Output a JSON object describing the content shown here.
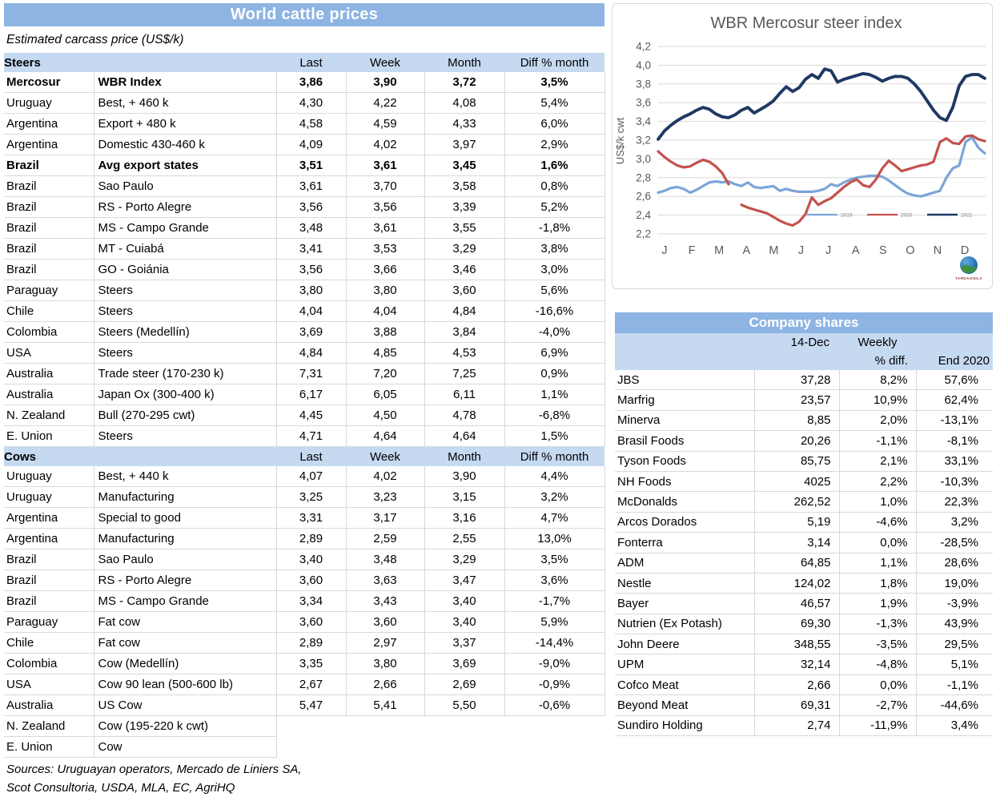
{
  "colors": {
    "title_bar_blue": "#8DB4E2",
    "band_blue": "#C5D9F1",
    "grid_gray": "#D9D9D9",
    "axis_text_gray": "#595959",
    "series_2019": "#7CA5D8",
    "series_2020": "#C3524E",
    "series_2021": "#1F3864"
  },
  "left_panel": {
    "title": "World cattle prices",
    "subtitle": "Estimated carcass price (US$/k)",
    "column_headers": [
      "Last",
      "Week",
      "Month",
      "Diff % month"
    ],
    "sections": [
      {
        "name": "Steers",
        "rows": [
          [
            "Mercosur",
            "WBR Index",
            "3,86",
            "3,90",
            "3,72",
            "3,5%",
            1
          ],
          [
            "Uruguay",
            "Best, + 460 k",
            "4,30",
            "4,22",
            "4,08",
            "5,4%",
            0
          ],
          [
            "Argentina",
            "Export + 480 k",
            "4,58",
            "4,59",
            "4,33",
            "6,0%",
            0
          ],
          [
            "Argentina",
            "Domestic 430-460 k",
            "4,09",
            "4,02",
            "3,97",
            "2,9%",
            0
          ],
          [
            "Brazil",
            "Avg export states",
            "3,51",
            "3,61",
            "3,45",
            "1,6%",
            1
          ],
          [
            "Brazil",
            "Sao Paulo",
            "3,61",
            "3,70",
            "3,58",
            "0,8%",
            0
          ],
          [
            "Brazil",
            "RS - Porto Alegre",
            "3,56",
            "3,56",
            "3,39",
            "5,2%",
            0
          ],
          [
            "Brazil",
            "MS - Campo Grande",
            "3,48",
            "3,61",
            "3,55",
            "-1,8%",
            0
          ],
          [
            "Brazil",
            "MT - Cuiabá",
            "3,41",
            "3,53",
            "3,29",
            "3,8%",
            0
          ],
          [
            "Brazil",
            "GO - Goiánia",
            "3,56",
            "3,66",
            "3,46",
            "3,0%",
            0
          ],
          [
            "Paraguay",
            "Steers",
            "3,80",
            "3,80",
            "3,60",
            "5,6%",
            0
          ],
          [
            "Chile",
            "Steers",
            "4,04",
            "4,04",
            "4,84",
            "-16,6%",
            0
          ],
          [
            "Colombia",
            "Steers (Medellín)",
            "3,69",
            "3,88",
            "3,84",
            "-4,0%",
            0
          ],
          [
            "USA",
            "Steers",
            "4,84",
            "4,85",
            "4,53",
            "6,9%",
            0
          ],
          [
            "Australia",
            "Trade steer (170-230 k)",
            "7,31",
            "7,20",
            "7,25",
            "0,9%",
            0
          ],
          [
            "Australia",
            "Japan Ox (300-400 k)",
            "6,17",
            "6,05",
            "6,11",
            "1,1%",
            0
          ],
          [
            "N. Zealand",
            "Bull (270-295 cwt)",
            "4,45",
            "4,50",
            "4,78",
            "-6,8%",
            0
          ],
          [
            "E. Union",
            "Steers",
            "4,71",
            "4,64",
            "4,64",
            "1,5%",
            0
          ]
        ]
      },
      {
        "name": "Cows",
        "rows": [
          [
            "Uruguay",
            "Best, + 440 k",
            "4,07",
            "4,02",
            "3,90",
            "4,4%",
            0
          ],
          [
            "Uruguay",
            "Manufacturing",
            "3,25",
            "3,23",
            "3,15",
            "3,2%",
            0
          ],
          [
            "Argentina",
            "Special to good",
            "3,31",
            "3,17",
            "3,16",
            "4,7%",
            0
          ],
          [
            "Argentina",
            "Manufacturing",
            "2,89",
            "2,59",
            "2,55",
            "13,0%",
            0
          ],
          [
            "Brazil",
            "Sao Paulo",
            "3,40",
            "3,48",
            "3,29",
            "3,5%",
            0
          ],
          [
            "Brazil",
            "RS - Porto Alegre",
            "3,60",
            "3,63",
            "3,47",
            "3,6%",
            0
          ],
          [
            "Brazil",
            "MS - Campo Grande",
            "3,34",
            "3,43",
            "3,40",
            "-1,7%",
            0
          ],
          [
            "Paraguay",
            "Fat cow",
            "3,60",
            "3,60",
            "3,40",
            "5,9%",
            0
          ],
          [
            "Chile",
            "Fat cow",
            "2,89",
            "2,97",
            "3,37",
            "-14,4%",
            0
          ],
          [
            "Colombia",
            "Cow (Medellín)",
            "3,35",
            "3,80",
            "3,69",
            "-9,0%",
            0
          ],
          [
            "USA",
            "Cow 90 lean (500-600 lb)",
            "2,67",
            "2,66",
            "2,69",
            "-0,9%",
            0
          ],
          [
            "Australia",
            "US Cow",
            "5,47",
            "5,41",
            "5,50",
            "-0,6%",
            0
          ],
          [
            "N. Zealand",
            "Cow (195-220 k cwt)",
            "",
            "",
            "",
            "",
            0
          ],
          [
            "E. Union",
            "Cow",
            "",
            "",
            "",
            "",
            0
          ]
        ]
      }
    ],
    "sources": [
      "Sources: Uruguayan operators, Mercado de Liniers SA,",
      "Scot Consultoria, USDA, MLA, EC, AgriHQ"
    ]
  },
  "chart_data": {
    "type": "line",
    "title": "WBR Mercosur steer index",
    "xlabel": "",
    "ylabel": "US$/k cwt",
    "ylim": [
      2.2,
      4.2
    ],
    "ytick_step": 0.2,
    "categories": [
      "J",
      "F",
      "M",
      "A",
      "M",
      "J",
      "J",
      "A",
      "S",
      "O",
      "N",
      "D"
    ],
    "grid": true,
    "legend_position": "inside-bottom-right",
    "x_resolution": "weekly",
    "series": [
      {
        "name": "2019",
        "color": "#7CA5D8",
        "values": [
          2.64,
          2.66,
          2.69,
          2.7,
          2.68,
          2.64,
          2.67,
          2.71,
          2.75,
          2.76,
          2.75,
          2.76,
          2.73,
          2.71,
          2.75,
          2.7,
          2.69,
          2.7,
          2.71,
          2.66,
          2.68,
          2.66,
          2.65,
          2.65,
          2.65,
          2.66,
          2.68,
          2.73,
          2.71,
          2.75,
          2.78,
          2.8,
          2.81,
          2.82,
          2.82,
          2.81,
          2.77,
          2.72,
          2.67,
          2.63,
          2.61,
          2.6,
          2.62,
          2.64,
          2.66,
          2.8,
          2.9,
          2.93,
          3.18,
          3.23,
          3.12,
          3.06
        ]
      },
      {
        "name": "2020",
        "color": "#C3524E",
        "values": [
          3.08,
          3.02,
          2.97,
          2.93,
          2.91,
          2.92,
          2.96,
          2.99,
          2.97,
          2.92,
          2.85,
          2.73,
          null,
          2.51,
          2.48,
          2.46,
          2.44,
          2.42,
          2.38,
          2.34,
          2.31,
          2.29,
          2.33,
          2.41,
          2.59,
          2.51,
          2.55,
          2.58,
          2.64,
          2.7,
          2.75,
          2.78,
          2.72,
          2.7,
          2.78,
          2.9,
          2.98,
          2.93,
          2.87,
          2.89,
          2.91,
          2.93,
          2.94,
          2.97,
          3.18,
          3.22,
          3.17,
          3.16,
          3.24,
          3.25,
          3.21,
          3.19
        ]
      },
      {
        "name": "2021",
        "color": "#1F3864",
        "values": [
          3.21,
          3.3,
          3.36,
          3.41,
          3.45,
          3.48,
          3.52,
          3.55,
          3.53,
          3.48,
          3.45,
          3.44,
          3.47,
          3.52,
          3.55,
          3.49,
          3.53,
          3.57,
          3.62,
          3.7,
          3.77,
          3.72,
          3.76,
          3.85,
          3.9,
          3.86,
          3.96,
          3.94,
          3.82,
          3.85,
          3.87,
          3.89,
          3.91,
          3.9,
          3.87,
          3.83,
          3.86,
          3.88,
          3.88,
          3.86,
          3.8,
          3.72,
          3.62,
          3.52,
          3.44,
          3.41,
          3.55,
          3.78,
          3.88,
          3.9,
          3.9,
          3.86
        ]
      }
    ]
  },
  "company_shares": {
    "title": "Company shares",
    "headers": {
      "date": "14-Dec",
      "weekly_top": "Weekly",
      "weekly_bottom": "% diff.",
      "end": "End 2020"
    },
    "rows": [
      [
        "JBS",
        "37,28",
        "8,2%",
        "57,6%"
      ],
      [
        "Marfrig",
        "23,57",
        "10,9%",
        "62,4%"
      ],
      [
        "Minerva",
        "8,85",
        "2,0%",
        "-13,1%"
      ],
      [
        "Brasil Foods",
        "20,26",
        "-1,1%",
        "-8,1%"
      ],
      [
        "Tyson Foods",
        "85,75",
        "2,1%",
        "33,1%"
      ],
      [
        "NH Foods",
        "4025",
        "2,2%",
        "-10,3%"
      ],
      [
        "McDonalds",
        "262,52",
        "1,0%",
        "22,3%"
      ],
      [
        "Arcos Dorados",
        "5,19",
        "-4,6%",
        "3,2%"
      ],
      [
        "Fonterra",
        "3,14",
        "0,0%",
        "-28,5%"
      ],
      [
        "ADM",
        "64,85",
        "1,1%",
        "28,6%"
      ],
      [
        "Nestle",
        "124,02",
        "1,8%",
        "19,0%"
      ],
      [
        "Bayer",
        "46,57",
        "1,9%",
        "-3,9%"
      ],
      [
        "Nutrien (Ex Potash)",
        "69,30",
        "-1,3%",
        "43,9%"
      ],
      [
        "John Deere",
        "348,55",
        "-3,5%",
        "29,5%"
      ],
      [
        "UPM",
        "32,14",
        "-4,8%",
        "5,1%"
      ],
      [
        "Cofco Meat",
        "2,66",
        "0,0%",
        "-1,1%"
      ],
      [
        "Beyond Meat",
        "69,31",
        "-2,7%",
        "-44,6%"
      ],
      [
        "Sundiro Holding",
        "2,74",
        "-11,9%",
        "3,4%"
      ]
    ]
  },
  "logo": {
    "label": "TARDAGUILA"
  }
}
